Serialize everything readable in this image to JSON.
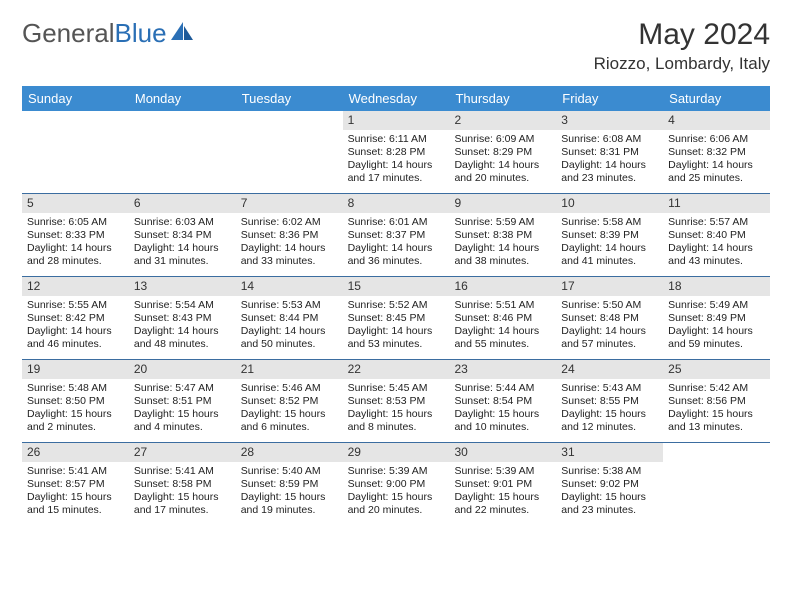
{
  "logo": {
    "part1": "General",
    "part2": "Blue"
  },
  "title": "May 2024",
  "location": "Riozzo, Lombardy, Italy",
  "colors": {
    "header_bg": "#3b8bd0",
    "header_text": "#ffffff",
    "daynum_bg": "#e5e5e5",
    "week_border": "#3b6da0",
    "logo_gray": "#555555",
    "logo_blue": "#2a6fb5"
  },
  "day_names": [
    "Sunday",
    "Monday",
    "Tuesday",
    "Wednesday",
    "Thursday",
    "Friday",
    "Saturday"
  ],
  "weeks": [
    [
      {
        "empty": true
      },
      {
        "empty": true
      },
      {
        "empty": true
      },
      {
        "n": "1",
        "sr": "Sunrise: 6:11 AM",
        "ss": "Sunset: 8:28 PM",
        "dl1": "Daylight: 14 hours",
        "dl2": "and 17 minutes."
      },
      {
        "n": "2",
        "sr": "Sunrise: 6:09 AM",
        "ss": "Sunset: 8:29 PM",
        "dl1": "Daylight: 14 hours",
        "dl2": "and 20 minutes."
      },
      {
        "n": "3",
        "sr": "Sunrise: 6:08 AM",
        "ss": "Sunset: 8:31 PM",
        "dl1": "Daylight: 14 hours",
        "dl2": "and 23 minutes."
      },
      {
        "n": "4",
        "sr": "Sunrise: 6:06 AM",
        "ss": "Sunset: 8:32 PM",
        "dl1": "Daylight: 14 hours",
        "dl2": "and 25 minutes."
      }
    ],
    [
      {
        "n": "5",
        "sr": "Sunrise: 6:05 AM",
        "ss": "Sunset: 8:33 PM",
        "dl1": "Daylight: 14 hours",
        "dl2": "and 28 minutes."
      },
      {
        "n": "6",
        "sr": "Sunrise: 6:03 AM",
        "ss": "Sunset: 8:34 PM",
        "dl1": "Daylight: 14 hours",
        "dl2": "and 31 minutes."
      },
      {
        "n": "7",
        "sr": "Sunrise: 6:02 AM",
        "ss": "Sunset: 8:36 PM",
        "dl1": "Daylight: 14 hours",
        "dl2": "and 33 minutes."
      },
      {
        "n": "8",
        "sr": "Sunrise: 6:01 AM",
        "ss": "Sunset: 8:37 PM",
        "dl1": "Daylight: 14 hours",
        "dl2": "and 36 minutes."
      },
      {
        "n": "9",
        "sr": "Sunrise: 5:59 AM",
        "ss": "Sunset: 8:38 PM",
        "dl1": "Daylight: 14 hours",
        "dl2": "and 38 minutes."
      },
      {
        "n": "10",
        "sr": "Sunrise: 5:58 AM",
        "ss": "Sunset: 8:39 PM",
        "dl1": "Daylight: 14 hours",
        "dl2": "and 41 minutes."
      },
      {
        "n": "11",
        "sr": "Sunrise: 5:57 AM",
        "ss": "Sunset: 8:40 PM",
        "dl1": "Daylight: 14 hours",
        "dl2": "and 43 minutes."
      }
    ],
    [
      {
        "n": "12",
        "sr": "Sunrise: 5:55 AM",
        "ss": "Sunset: 8:42 PM",
        "dl1": "Daylight: 14 hours",
        "dl2": "and 46 minutes."
      },
      {
        "n": "13",
        "sr": "Sunrise: 5:54 AM",
        "ss": "Sunset: 8:43 PM",
        "dl1": "Daylight: 14 hours",
        "dl2": "and 48 minutes."
      },
      {
        "n": "14",
        "sr": "Sunrise: 5:53 AM",
        "ss": "Sunset: 8:44 PM",
        "dl1": "Daylight: 14 hours",
        "dl2": "and 50 minutes."
      },
      {
        "n": "15",
        "sr": "Sunrise: 5:52 AM",
        "ss": "Sunset: 8:45 PM",
        "dl1": "Daylight: 14 hours",
        "dl2": "and 53 minutes."
      },
      {
        "n": "16",
        "sr": "Sunrise: 5:51 AM",
        "ss": "Sunset: 8:46 PM",
        "dl1": "Daylight: 14 hours",
        "dl2": "and 55 minutes."
      },
      {
        "n": "17",
        "sr": "Sunrise: 5:50 AM",
        "ss": "Sunset: 8:48 PM",
        "dl1": "Daylight: 14 hours",
        "dl2": "and 57 minutes."
      },
      {
        "n": "18",
        "sr": "Sunrise: 5:49 AM",
        "ss": "Sunset: 8:49 PM",
        "dl1": "Daylight: 14 hours",
        "dl2": "and 59 minutes."
      }
    ],
    [
      {
        "n": "19",
        "sr": "Sunrise: 5:48 AM",
        "ss": "Sunset: 8:50 PM",
        "dl1": "Daylight: 15 hours",
        "dl2": "and 2 minutes."
      },
      {
        "n": "20",
        "sr": "Sunrise: 5:47 AM",
        "ss": "Sunset: 8:51 PM",
        "dl1": "Daylight: 15 hours",
        "dl2": "and 4 minutes."
      },
      {
        "n": "21",
        "sr": "Sunrise: 5:46 AM",
        "ss": "Sunset: 8:52 PM",
        "dl1": "Daylight: 15 hours",
        "dl2": "and 6 minutes."
      },
      {
        "n": "22",
        "sr": "Sunrise: 5:45 AM",
        "ss": "Sunset: 8:53 PM",
        "dl1": "Daylight: 15 hours",
        "dl2": "and 8 minutes."
      },
      {
        "n": "23",
        "sr": "Sunrise: 5:44 AM",
        "ss": "Sunset: 8:54 PM",
        "dl1": "Daylight: 15 hours",
        "dl2": "and 10 minutes."
      },
      {
        "n": "24",
        "sr": "Sunrise: 5:43 AM",
        "ss": "Sunset: 8:55 PM",
        "dl1": "Daylight: 15 hours",
        "dl2": "and 12 minutes."
      },
      {
        "n": "25",
        "sr": "Sunrise: 5:42 AM",
        "ss": "Sunset: 8:56 PM",
        "dl1": "Daylight: 15 hours",
        "dl2": "and 13 minutes."
      }
    ],
    [
      {
        "n": "26",
        "sr": "Sunrise: 5:41 AM",
        "ss": "Sunset: 8:57 PM",
        "dl1": "Daylight: 15 hours",
        "dl2": "and 15 minutes."
      },
      {
        "n": "27",
        "sr": "Sunrise: 5:41 AM",
        "ss": "Sunset: 8:58 PM",
        "dl1": "Daylight: 15 hours",
        "dl2": "and 17 minutes."
      },
      {
        "n": "28",
        "sr": "Sunrise: 5:40 AM",
        "ss": "Sunset: 8:59 PM",
        "dl1": "Daylight: 15 hours",
        "dl2": "and 19 minutes."
      },
      {
        "n": "29",
        "sr": "Sunrise: 5:39 AM",
        "ss": "Sunset: 9:00 PM",
        "dl1": "Daylight: 15 hours",
        "dl2": "and 20 minutes."
      },
      {
        "n": "30",
        "sr": "Sunrise: 5:39 AM",
        "ss": "Sunset: 9:01 PM",
        "dl1": "Daylight: 15 hours",
        "dl2": "and 22 minutes."
      },
      {
        "n": "31",
        "sr": "Sunrise: 5:38 AM",
        "ss": "Sunset: 9:02 PM",
        "dl1": "Daylight: 15 hours",
        "dl2": "and 23 minutes."
      },
      {
        "empty": true
      }
    ]
  ]
}
